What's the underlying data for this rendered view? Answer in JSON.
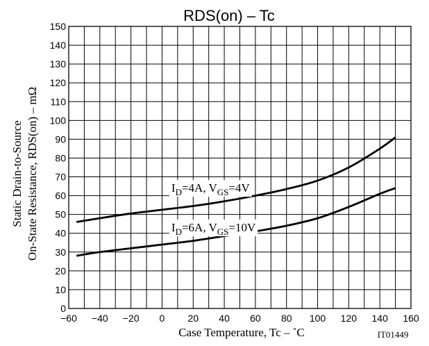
{
  "chart_data": {
    "type": "line",
    "title": "RDS(on) – Tc",
    "xlabel": "Case Temperature, Tc  –  ˚C",
    "ylabel_line1": "Static Drain-to-Source",
    "ylabel_line2": "On-State Resistance, RDS(on)  –  mΩ",
    "xlim": [
      -60,
      160
    ],
    "ylim": [
      0,
      150
    ],
    "xticks": [
      -60,
      -40,
      -20,
      0,
      20,
      40,
      60,
      80,
      100,
      120,
      140,
      160
    ],
    "yticks": [
      0,
      10,
      20,
      30,
      40,
      50,
      60,
      70,
      80,
      90,
      100,
      110,
      120,
      130,
      140,
      150
    ],
    "x_minor_step": 10,
    "grid": true,
    "series": [
      {
        "name": "ID=4A, VGS=4V",
        "x": [
          -55,
          -40,
          -20,
          0,
          20,
          40,
          60,
          80,
          100,
          120,
          140,
          150
        ],
        "y": [
          46,
          48,
          50.5,
          52.5,
          54.5,
          57,
          60,
          63.5,
          68,
          75,
          85,
          91
        ]
      },
      {
        "name": "ID=6A, VGS=10V",
        "x": [
          -55,
          -40,
          -20,
          0,
          20,
          40,
          60,
          80,
          100,
          120,
          140,
          150
        ],
        "y": [
          28,
          30,
          32,
          34,
          36,
          38.5,
          41,
          44,
          48,
          54,
          61,
          64
        ]
      }
    ],
    "figure_id": "IT01449"
  }
}
